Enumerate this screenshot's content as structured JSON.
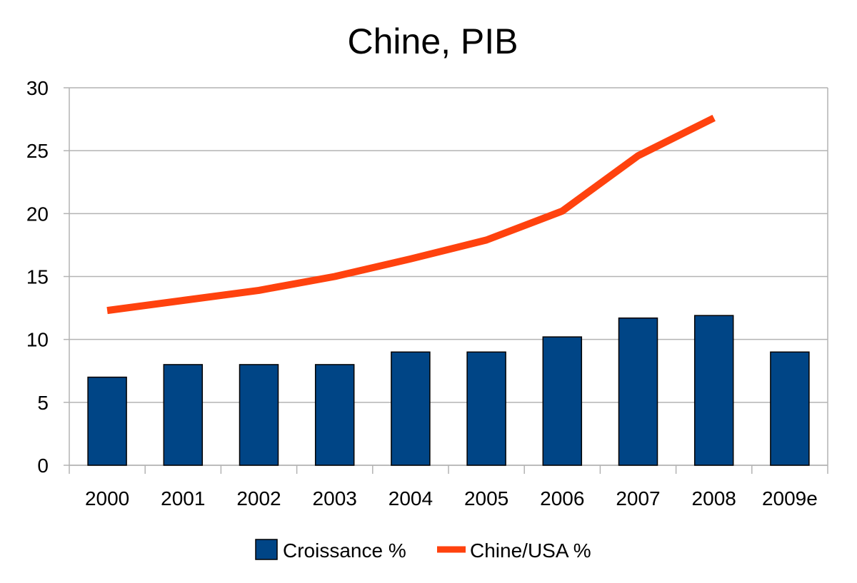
{
  "chart_data": {
    "type": "bar",
    "title": "Chine, PIB",
    "categories": [
      "2000",
      "2001",
      "2002",
      "2003",
      "2004",
      "2005",
      "2006",
      "2007",
      "2008",
      "2009e"
    ],
    "series": [
      {
        "name": "Croissance %",
        "type": "bar",
        "color": "#004586",
        "values": [
          7,
          8,
          8,
          8,
          9,
          9,
          10.2,
          11.7,
          11.9,
          9
        ]
      },
      {
        "name": "Chine/USA %",
        "type": "line",
        "color": "#ff420e",
        "values": [
          12.3,
          13.1,
          13.9,
          15.0,
          16.4,
          17.9,
          20.2,
          24.6,
          27.6,
          null
        ]
      }
    ],
    "ylim": [
      0,
      30
    ],
    "yticks": [
      "0",
      "5",
      "10",
      "15",
      "20",
      "25",
      "30"
    ],
    "grid": true,
    "legend_position": "bottom"
  }
}
